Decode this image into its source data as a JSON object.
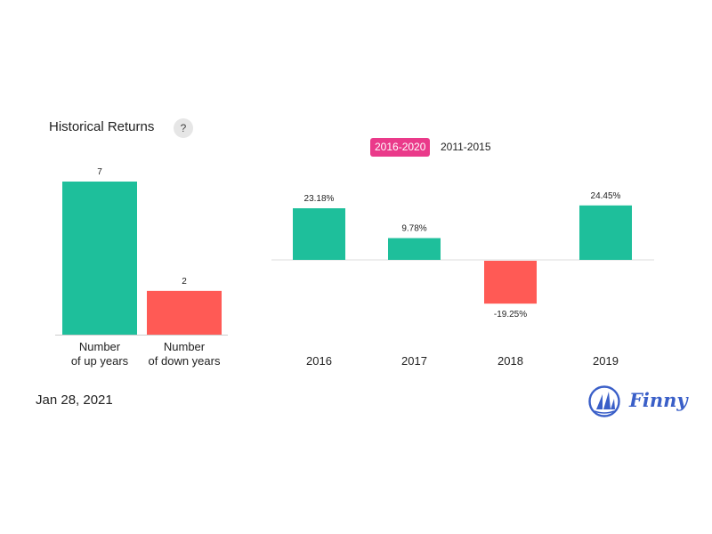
{
  "header": {
    "title": "Historical Returns",
    "help": "?"
  },
  "tabs": [
    {
      "label": "2016-2020",
      "active": true
    },
    {
      "label": "2011-2015",
      "active": false
    }
  ],
  "footer": {
    "date": "Jan 28, 2021",
    "brand": "Finny"
  },
  "colors": {
    "up": "#1ebf9b",
    "down": "#ff5a55",
    "accent": "#ea3a8a",
    "brand": "#3a5fc8"
  },
  "chart_data": [
    {
      "type": "bar",
      "categories": [
        [
          "Number",
          "of up years"
        ],
        [
          "Number",
          "of down years"
        ]
      ],
      "values": [
        7,
        2
      ],
      "data_labels": [
        "7",
        "2"
      ],
      "title": "",
      "xlabel": "",
      "ylabel": "",
      "ylim": [
        0,
        7
      ]
    },
    {
      "type": "bar",
      "categories": [
        "2016",
        "2017",
        "2018",
        "2019"
      ],
      "values": [
        23.18,
        9.78,
        -19.25,
        24.45
      ],
      "data_labels": [
        "23.18%",
        "9.78%",
        "-19.25%",
        "24.45%"
      ],
      "title": "",
      "xlabel": "",
      "ylabel": "",
      "ylim": [
        -19.25,
        24.45
      ]
    }
  ]
}
